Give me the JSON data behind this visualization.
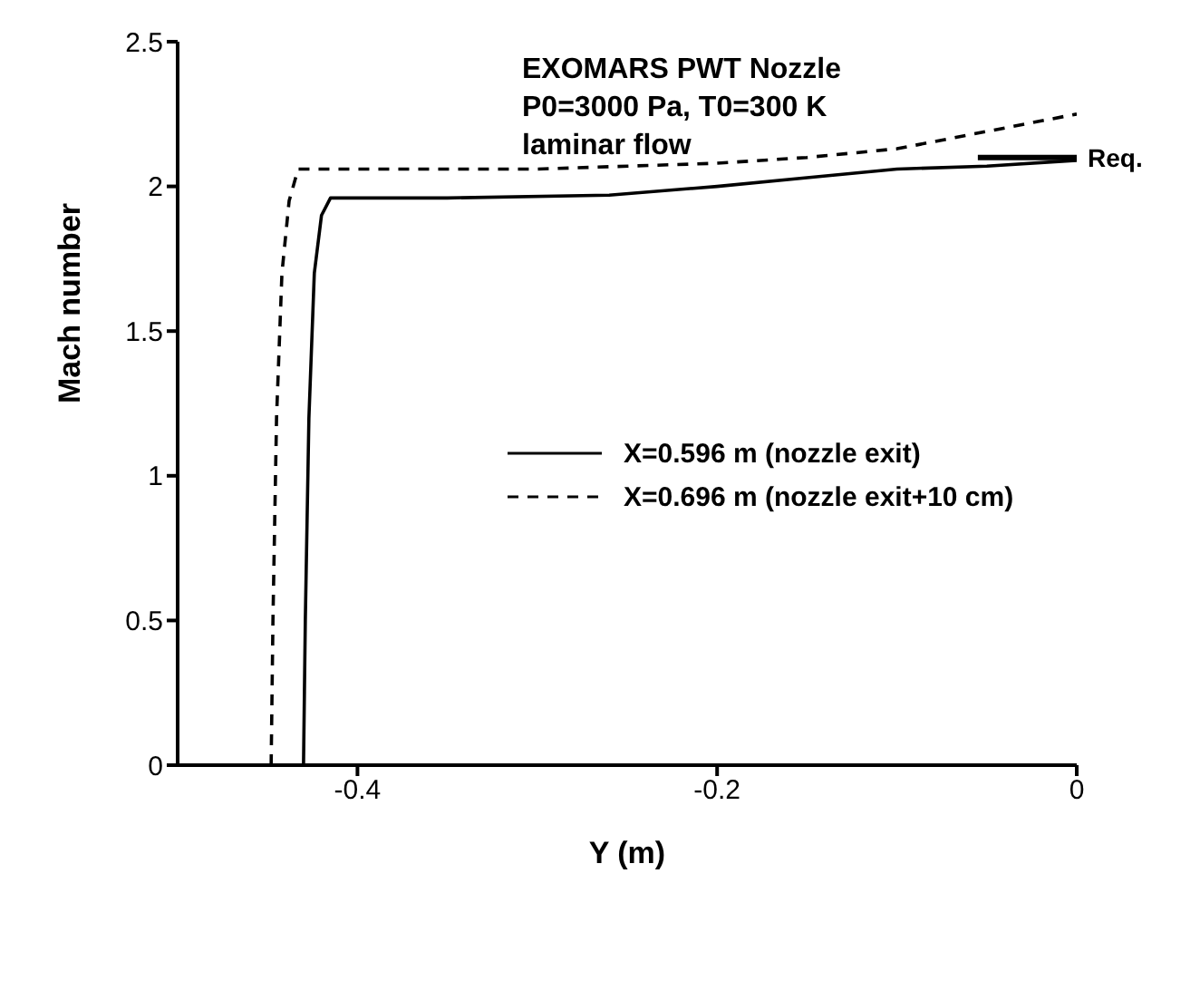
{
  "chart_data": {
    "type": "line",
    "title": "EXOMARS PWT Nozzle\nP0=3000 Pa, T0=300 K\nlaminar flow",
    "xlabel": "Y (m)",
    "ylabel": "Mach number",
    "xlim": [
      -0.5,
      0
    ],
    "xticks": [
      -0.4,
      -0.2,
      0
    ],
    "ylim": [
      0,
      2.5
    ],
    "yticks": [
      0,
      0.5,
      1,
      1.5,
      2,
      2.5
    ],
    "grid": false,
    "legend": "right",
    "marker": "none",
    "series": [
      {
        "name": "X=0.596 m (nozzle exit)",
        "color": "#000000",
        "line_style": "solid",
        "x": [
          -0.43,
          -0.429,
          -0.427,
          -0.424,
          -0.42,
          -0.415,
          -0.35,
          -0.26,
          -0.2,
          -0.15,
          -0.1,
          -0.05,
          0
        ],
        "values": [
          0,
          0.5,
          1.2,
          1.7,
          1.9,
          1.96,
          1.96,
          1.97,
          2.0,
          2.03,
          2.06,
          2.07,
          2.09
        ]
      },
      {
        "name": "X=0.696 m (nozzle exit+10 cm)",
        "color": "#000000",
        "line_style": "dashed",
        "x": [
          -0.448,
          -0.447,
          -0.445,
          -0.442,
          -0.438,
          -0.433,
          -0.35,
          -0.3,
          -0.2,
          -0.15,
          -0.1,
          -0.05,
          0
        ],
        "values": [
          0,
          0.5,
          1.2,
          1.7,
          1.95,
          2.06,
          2.06,
          2.06,
          2.08,
          2.1,
          2.13,
          2.19,
          2.25
        ]
      },
      {
        "color": "#000000",
        "line_style": "solid",
        "x": [
          -0.055,
          0
        ],
        "values": [
          2.1,
          2.1
        ]
      }
    ],
    "annotations": [
      {
        "text": "Req.",
        "x": 0,
        "y": 2.1
      }
    ]
  }
}
